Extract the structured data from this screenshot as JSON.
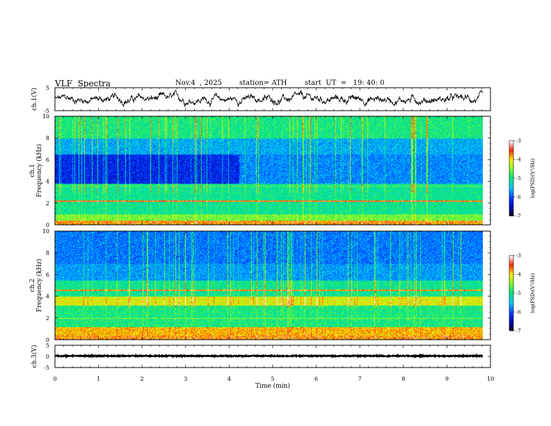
{
  "header": {
    "title": "VLF  Spectra",
    "date": "Nov.4  , 2025",
    "station": "station= ATH",
    "start_ut": "start  UT  =   19: 40: 0"
  },
  "chart_data": [
    {
      "type": "line",
      "name": "ch1-waveform",
      "ylabel": "ch.1(V)",
      "ylim": [
        -5,
        5
      ],
      "yticks": [
        "5",
        "-5"
      ],
      "xlim": [
        0,
        10
      ]
    },
    {
      "type": "heatmap",
      "name": "ch1-spectrogram",
      "ylabel_line1": "ch.1",
      "ylabel_line2": "Frequency  (kHz)",
      "ylim": [
        0,
        10
      ],
      "yticks": [
        "0",
        "2",
        "4",
        "6",
        "8",
        "10"
      ],
      "xlim": [
        0,
        10
      ],
      "data_end_min": 9.83,
      "colorbar": {
        "label": "log(PSD)(V²/Hz)",
        "range": [
          -7,
          -3
        ],
        "ticks": [
          "-3",
          "-4",
          "-5",
          "-6",
          "-7"
        ]
      }
    },
    {
      "type": "heatmap",
      "name": "ch2-spectrogram",
      "ylabel_line1": "ch.2",
      "ylabel_line2": "Frequency  (kHz)",
      "ylim": [
        0,
        10
      ],
      "yticks": [
        "0",
        "2",
        "4",
        "6",
        "8",
        "10"
      ],
      "xlim": [
        0,
        10
      ],
      "data_end_min": 9.83,
      "colorbar": {
        "label": "log(PSD)(V²/Hz)",
        "range": [
          -7,
          -3
        ],
        "ticks": [
          "-3",
          "-4",
          "-5",
          "-6",
          "-7"
        ]
      }
    },
    {
      "type": "line",
      "name": "ch3-waveform",
      "ylabel": "ch.3(V)",
      "ylim": [
        -5,
        5
      ],
      "yticks": [
        "5",
        "0",
        "-5"
      ],
      "xlim": [
        0,
        10
      ],
      "xlabel": "Time  (min)",
      "xticks": [
        "0",
        "1",
        "2",
        "3",
        "4",
        "5",
        "6",
        "7",
        "8",
        "9",
        "10"
      ]
    }
  ]
}
